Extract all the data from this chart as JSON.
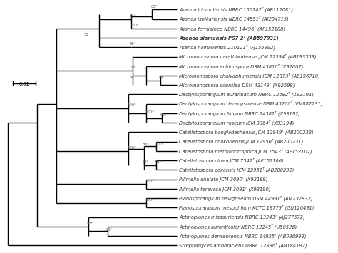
{
  "background_color": "#ffffff",
  "line_color": "#000000",
  "text_color": "#333333",
  "taxa": [
    {
      "label": "Asanoa iriomotensis NBRC 100142ᵀ (AB112081)",
      "y": 1,
      "bold": false
    },
    {
      "label": "Asanoa ishikariensis NBRC 14551ᵀ (AJ294715)",
      "y": 2,
      "bold": false
    },
    {
      "label": "Asanoa ferruginea NBRC 14496ᵀ (AF152108)",
      "y": 3,
      "bold": false
    },
    {
      "label": "Asanoa siamensis PS7-2ᵀ (AB597931)",
      "y": 4,
      "bold": true
    },
    {
      "label": "Asanoa hainanensis 210121ᵀ (FJ155992)",
      "y": 5,
      "bold": false
    },
    {
      "label": "Micromonospora narathiwatensis JCM 12394ᵀ (AB193559)",
      "y": 6,
      "bold": false
    },
    {
      "label": "Micromonospora echinospora DSM 43816ᵀ (X92607)",
      "y": 7,
      "bold": false
    },
    {
      "label": "Micromonospora chaiyaphumensis JCM 12873ᵀ (AB196710)",
      "y": 8,
      "bold": false
    },
    {
      "label": "Micromonospora coerulea DSM 43143ᵀ (X92598)",
      "y": 9,
      "bold": false
    },
    {
      "label": "Dactylosporangium aurantiacum NBRC 12592ᵀ (X93191)",
      "y": 10,
      "bold": false
    },
    {
      "label": "Dactylosporangium darangshiense DSM 45260ᵀ (FM882231)",
      "y": 11,
      "bold": false
    },
    {
      "label": "Dactylosporangium fulvum NBRC 14381ᵀ (X93192)",
      "y": 12,
      "bold": false
    },
    {
      "label": "Dactylosporangium roseum JCM 3364ᵀ (X93194)",
      "y": 13,
      "bold": false
    },
    {
      "label": "Catellatospora bangladeshensis JCM 12949ᵀ (AB200233)",
      "y": 14,
      "bold": false
    },
    {
      "label": "Catellatospora chokoriensis JCM 12950ᵀ (AB200231)",
      "y": 15,
      "bold": false
    },
    {
      "label": "Catellatospora methionotrophica JCM 7543ᵀ (AF152107)",
      "y": 16,
      "bold": false
    },
    {
      "label": "Catellatospora citrea JCM 7542ᵀ (AF152106)",
      "y": 17,
      "bold": false
    },
    {
      "label": "Catellatospora coxensis JCM 12951ᵀ (AB200232)",
      "y": 18,
      "bold": false
    },
    {
      "label": "Pilimelia anulata JCM 3090ᵀ (X93189)",
      "y": 19,
      "bold": false
    },
    {
      "label": "Pilimelia terevasa JCM 3091ᵀ (X93190)",
      "y": 20,
      "bold": false
    },
    {
      "label": "Planosporangium flavigriseum DSM 44991ᵀ (AM232832)",
      "y": 21,
      "bold": false
    },
    {
      "label": "Planosporangium mesophilum KCTC 19779ᵀ (GU126491)",
      "y": 22,
      "bold": false
    },
    {
      "label": "Actinoplanes missouriensis NBRC 13243ᵀ (AJ277572)",
      "y": 23,
      "bold": false
    },
    {
      "label": "Actinoplanes auranticolor NBRC 12245ᵀ (U58526)",
      "y": 24,
      "bold": false
    },
    {
      "label": "Actinoplanes derwentensis NBRC 14935ᵀ (AB036999)",
      "y": 25,
      "bold": false
    },
    {
      "label": "Streptomyces ambofaciens NBRC 12836ᵀ (AB184182)",
      "y": 26,
      "bold": false
    }
  ],
  "scale_bar_label": "0.01",
  "lw": 1.0
}
